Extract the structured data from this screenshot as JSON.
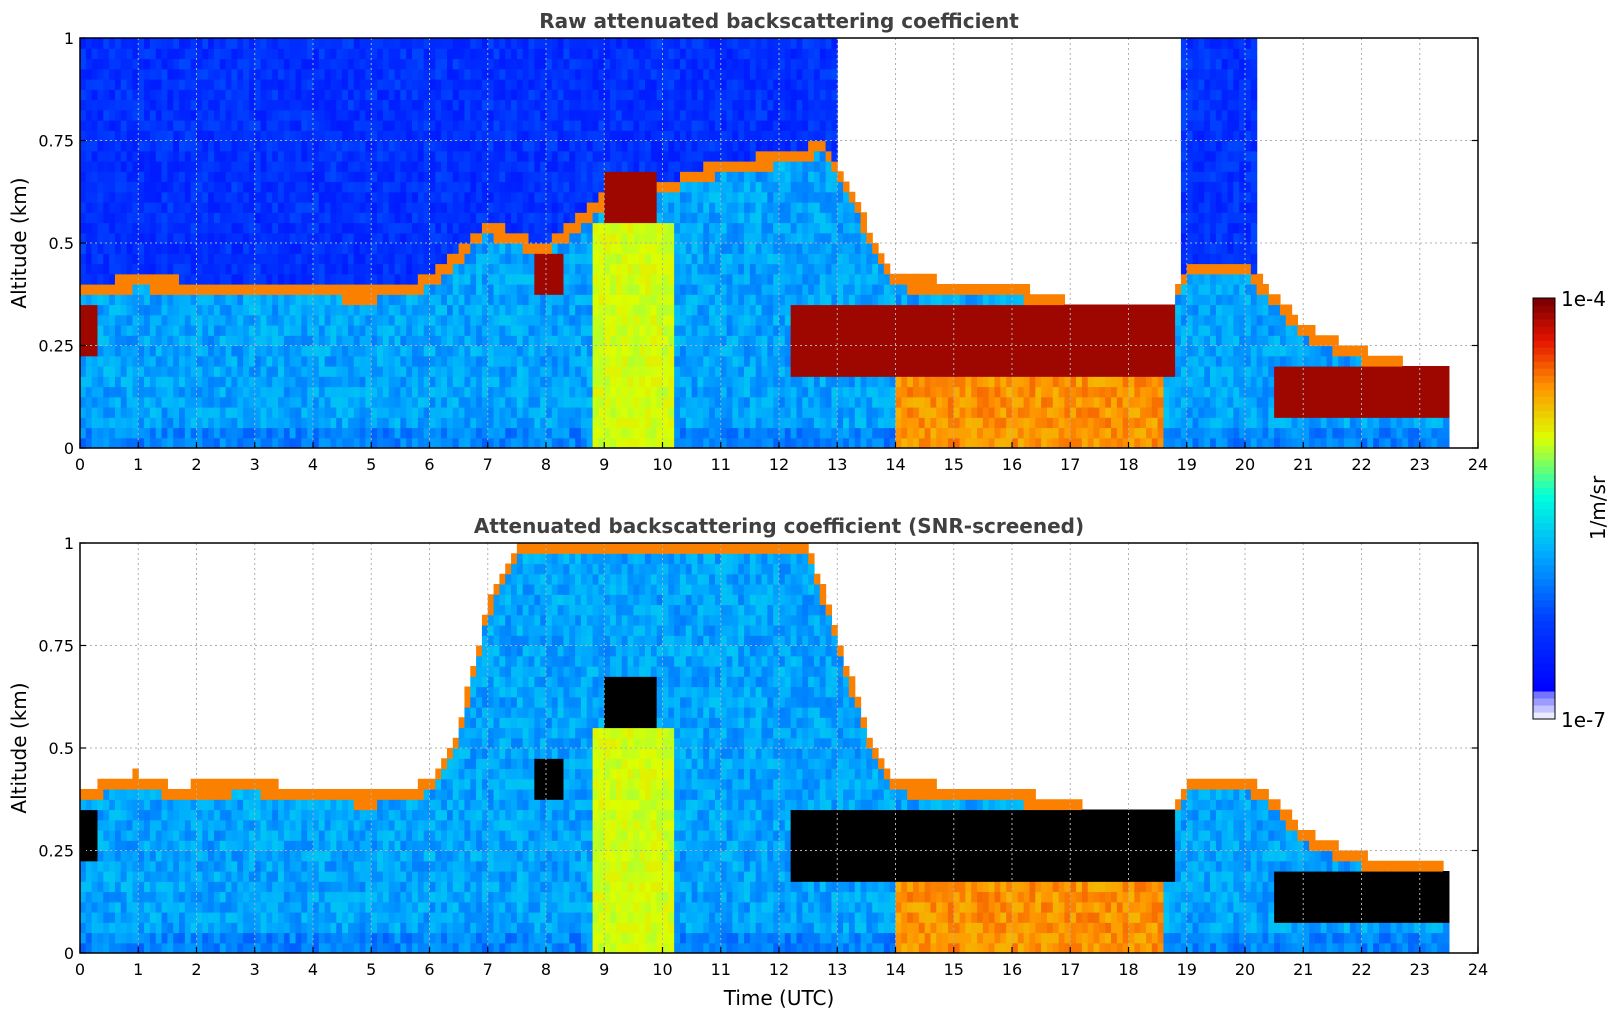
{
  "chart_data": [
    {
      "type": "heatmap",
      "title": "Raw attenuated backscattering coefficient",
      "xlabel": "",
      "ylabel": "Altitude (km)",
      "xlim": [
        0,
        24
      ],
      "ylim": [
        0,
        1
      ],
      "xticks": [
        "0",
        "1",
        "2",
        "3",
        "4",
        "5",
        "6",
        "7",
        "8",
        "9",
        "10",
        "11",
        "12",
        "13",
        "14",
        "15",
        "16",
        "17",
        "18",
        "19",
        "20",
        "21",
        "22",
        "23",
        "24"
      ],
      "yticks": [
        "0",
        "0.25",
        "0.5",
        "0.75",
        "1"
      ],
      "grid": true,
      "data_extent_hours": [
        0,
        23.5
      ],
      "boundary_layer_top_km": [
        [
          0,
          0.4
        ],
        [
          1,
          0.42
        ],
        [
          3,
          0.4
        ],
        [
          5,
          0.39
        ],
        [
          6,
          0.42
        ],
        [
          7,
          0.55
        ],
        [
          8,
          0.5
        ],
        [
          9,
          0.62
        ],
        [
          10,
          0.65
        ],
        [
          11,
          0.7
        ],
        [
          12,
          0.72
        ],
        [
          12.8,
          0.75
        ],
        [
          13.5,
          0.55
        ],
        [
          14,
          0.42
        ],
        [
          15,
          0.41
        ],
        [
          16,
          0.4
        ],
        [
          17,
          0.36
        ],
        [
          18,
          0.32
        ],
        [
          18.6,
          0.3
        ],
        [
          19,
          0.45
        ],
        [
          20,
          0.45
        ],
        [
          20.5,
          0.38
        ],
        [
          21,
          0.3
        ],
        [
          22,
          0.24
        ],
        [
          23,
          0.2
        ],
        [
          23.5,
          0.19
        ]
      ],
      "cloud_layers_km": [
        {
          "from_h": 12.2,
          "to_h": 18.8,
          "top": 0.34,
          "base": 0.18
        },
        {
          "from_h": 20.5,
          "to_h": 23.5,
          "top": 0.2,
          "base": 0.07
        },
        {
          "from_h": 9.0,
          "to_h": 9.9,
          "top": 0.68,
          "base": 0.55
        },
        {
          "from_h": 7.8,
          "to_h": 8.3,
          "top": 0.47,
          "base": 0.38
        },
        {
          "from_h": 0.0,
          "to_h": 0.35,
          "top": 0.36,
          "base": 0.22
        }
      ],
      "noise_region": "upper signal noisy before ~13 UTC and between ~18.9 and ~20.2 UTC"
    },
    {
      "type": "heatmap",
      "title": "Attenuated backscattering coefficient (SNR-screened)",
      "xlabel": "Time (UTC)",
      "ylabel": "Altitude (km)",
      "xlim": [
        0,
        24
      ],
      "ylim": [
        0,
        1
      ],
      "xticks": [
        "0",
        "1",
        "2",
        "3",
        "4",
        "5",
        "6",
        "7",
        "8",
        "9",
        "10",
        "11",
        "12",
        "13",
        "14",
        "15",
        "16",
        "17",
        "18",
        "19",
        "20",
        "21",
        "22",
        "23",
        "24"
      ],
      "yticks": [
        "0",
        "0.25",
        "0.5",
        "0.75",
        "1"
      ],
      "grid": true,
      "data_extent_hours": [
        0,
        23.5
      ],
      "screened_top_km": [
        [
          0,
          0.4
        ],
        [
          1,
          0.44
        ],
        [
          1.5,
          0.41
        ],
        [
          3,
          0.42
        ],
        [
          4,
          0.4
        ],
        [
          5,
          0.39
        ],
        [
          6,
          0.42
        ],
        [
          6.5,
          0.55
        ],
        [
          7,
          0.85
        ],
        [
          7.5,
          1.0
        ],
        [
          12.5,
          1.0
        ],
        [
          13,
          0.78
        ],
        [
          13.5,
          0.55
        ],
        [
          14,
          0.42
        ],
        [
          15,
          0.41
        ],
        [
          16,
          0.4
        ],
        [
          17,
          0.37
        ],
        [
          18,
          0.33
        ],
        [
          18.6,
          0.3
        ],
        [
          19,
          0.42
        ],
        [
          20,
          0.43
        ],
        [
          20.5,
          0.38
        ],
        [
          21,
          0.3
        ],
        [
          22,
          0.24
        ],
        [
          23,
          0.22
        ],
        [
          23.5,
          0.21
        ]
      ]
    }
  ],
  "colorbar": {
    "label": "1/m/sr",
    "max_label": "1e-4",
    "min_label": "1e-7",
    "scale": "log",
    "range": [
      1e-07,
      0.0001
    ],
    "colormap": [
      "#ffffff",
      "#0000ff",
      "#00aaff",
      "#00ffff",
      "#ffff00",
      "#ff6600",
      "#cc0000",
      "#7f0000"
    ]
  }
}
